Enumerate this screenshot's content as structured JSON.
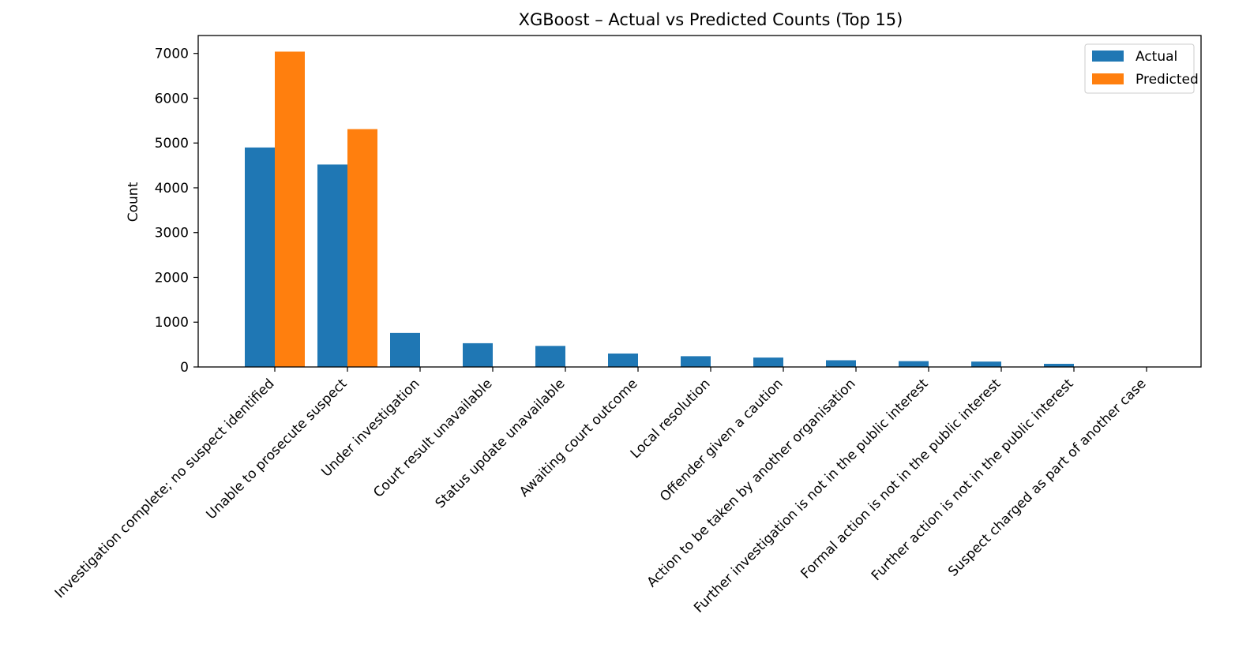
{
  "chart_data": {
    "type": "bar",
    "title": "XGBoost – Actual vs Predicted Counts (Top 15)",
    "xlabel": "",
    "ylabel": "Count",
    "ylim": [
      0,
      7400
    ],
    "yticks": [
      0,
      1000,
      2000,
      3000,
      4000,
      5000,
      6000,
      7000
    ],
    "grid": false,
    "legend_position": "top-right",
    "categories": [
      "Investigation complete; no suspect identified",
      "Unable to prosecute suspect",
      "Under investigation",
      "Court result unavailable",
      "Status update unavailable",
      "Awaiting court outcome",
      "Local resolution",
      "Offender given a caution",
      "Action to be taken by another organisation",
      "Further investigation is not in the public interest",
      "Formal action is not in the public interest",
      "Further action is not in the public interest",
      "Suspect charged as part of another case"
    ],
    "series": [
      {
        "name": "Actual",
        "color": "#1f77b4",
        "values": [
          4900,
          4520,
          760,
          530,
          470,
          300,
          240,
          210,
          150,
          130,
          120,
          70,
          5
        ]
      },
      {
        "name": "Predicted",
        "color": "#ff7f0e",
        "values": [
          7040,
          5310,
          0,
          0,
          0,
          0,
          0,
          0,
          0,
          0,
          0,
          0,
          0
        ]
      }
    ]
  }
}
